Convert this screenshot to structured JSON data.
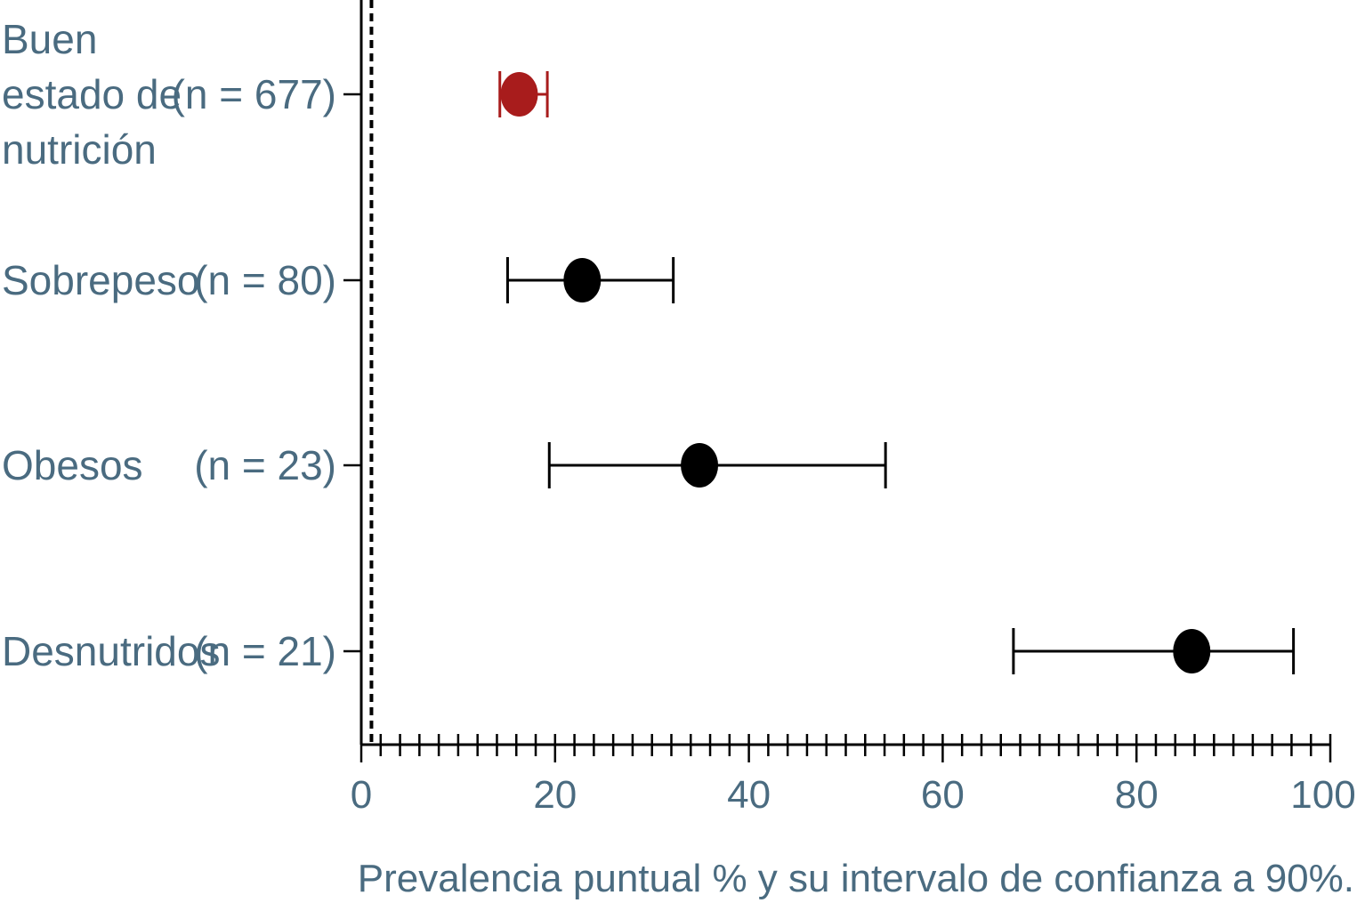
{
  "chart_data": {
    "type": "forest",
    "title": "",
    "xlabel": "Prevalencia puntual % y su intervalo de confianza a 90%.",
    "ylabel": "",
    "xlim": [
      0,
      100
    ],
    "x_ticks": [
      "0",
      "20",
      "40",
      "60",
      "80",
      "100"
    ],
    "minor_tick_step": 2,
    "reference_line": {
      "x": 0.5,
      "style": "dashed"
    },
    "grid": false,
    "rows": [
      {
        "label_lines": [
          "Buen",
          "estado de",
          "nutrición"
        ],
        "n_label": "(n = 677)",
        "estimate": 16.3,
        "ci_low": 14.3,
        "ci_high": 19.2,
        "color": "#a81c1c"
      },
      {
        "label_lines": [
          "Sobrepeso"
        ],
        "n_label": "(n = 80)",
        "estimate": 22.8,
        "ci_low": 15.1,
        "ci_high": 32.2,
        "color": "#000000"
      },
      {
        "label_lines": [
          "Obesos"
        ],
        "n_label": "(n = 23)",
        "estimate": 34.9,
        "ci_low": 19.4,
        "ci_high": 54.1,
        "color": "#000000"
      },
      {
        "label_lines": [
          "Desnutridos"
        ],
        "n_label": "(n = 21)",
        "estimate": 85.7,
        "ci_low": 67.3,
        "ci_high": 96.2,
        "color": "#000000"
      }
    ]
  }
}
